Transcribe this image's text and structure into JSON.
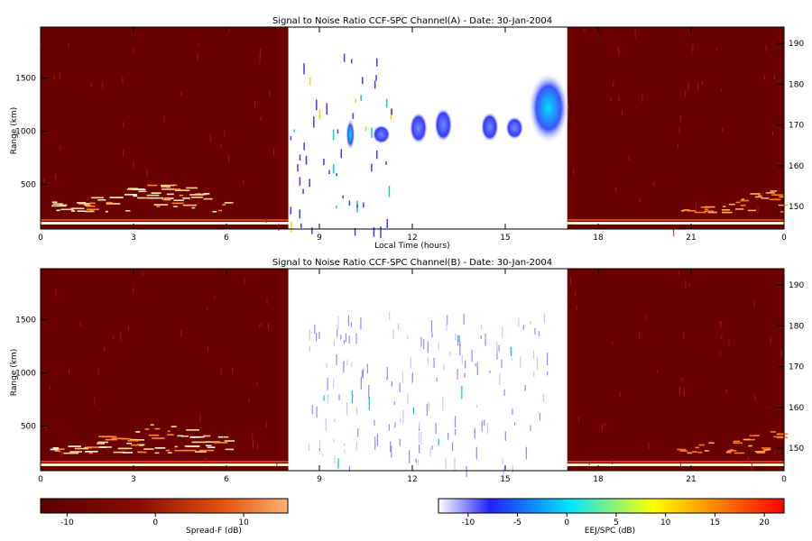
{
  "chart_data": [
    {
      "type": "heatmap",
      "title": "Signal to Noise Ratio CCF-SPC Channel(A) - Date: 30-Jan-2004",
      "xlabel": "Local Time (hours)",
      "ylabel": "Range (km)",
      "x_ticks": [
        "0",
        "3",
        "6",
        "9",
        "12",
        "15",
        "18",
        "21",
        "0"
      ],
      "y_ticks": [
        500,
        1000,
        1500
      ],
      "y2_ticks": [
        150,
        160,
        170,
        180,
        190
      ],
      "xlim": [
        0,
        24
      ],
      "ylim": [
        80,
        1980
      ],
      "y2lim": [
        144.5,
        194
      ],
      "spreadf_segments": [
        [
          0,
          8
        ],
        [
          17,
          24
        ]
      ],
      "eej_segment": [
        8,
        17
      ],
      "eej_patches": [
        {
          "t": 10.0,
          "r0": 820,
          "r1": 1120,
          "level": 5
        },
        {
          "t": 11.0,
          "r0": 880,
          "r1": 1060,
          "level": 0
        },
        {
          "t": 12.2,
          "r0": 880,
          "r1": 1180,
          "level": -2
        },
        {
          "t": 13.0,
          "r0": 900,
          "r1": 1220,
          "level": 0
        },
        {
          "t": 14.5,
          "r0": 900,
          "r1": 1180,
          "level": 0
        },
        {
          "t": 15.3,
          "r0": 920,
          "r1": 1140,
          "level": -2
        },
        {
          "t": 16.4,
          "r0": 880,
          "r1": 1560,
          "level": 2
        }
      ]
    },
    {
      "type": "heatmap",
      "title": "Signal to Noise Ratio CCF-SPC Channel(B) - Date: 30-Jan-2004",
      "xlabel": "",
      "ylabel": "Range (km)",
      "x_ticks": [
        "0",
        "3",
        "6",
        "9",
        "12",
        "15",
        "18",
        "21",
        "0"
      ],
      "y_ticks": [
        500,
        1000,
        1500
      ],
      "y2_ticks": [
        150,
        160,
        170,
        180,
        190
      ],
      "xlim": [
        0,
        24
      ],
      "ylim": [
        80,
        1980
      ],
      "y2lim": [
        144.5,
        194
      ],
      "spreadf_segments": [
        [
          0,
          8
        ],
        [
          17,
          24
        ]
      ],
      "eej_segment": [
        8,
        17
      ]
    }
  ],
  "colorbars": [
    {
      "label": "Spread-F (dB)",
      "ticks": [
        "-10",
        "0",
        "10"
      ],
      "range": [
        -13,
        15
      ],
      "colors": [
        "#5a0000",
        "#b32000",
        "#ff7a1a",
        "#ffffff"
      ]
    },
    {
      "label": "EEJ/SPC (dB)",
      "ticks": [
        "-10",
        "-5",
        "0",
        "5",
        "10",
        "15",
        "20"
      ],
      "range": [
        -13,
        22
      ],
      "colors": [
        "#ffffff",
        "#2020ff",
        "#00e6ff",
        "#ffff00",
        "#ff0000"
      ]
    }
  ]
}
